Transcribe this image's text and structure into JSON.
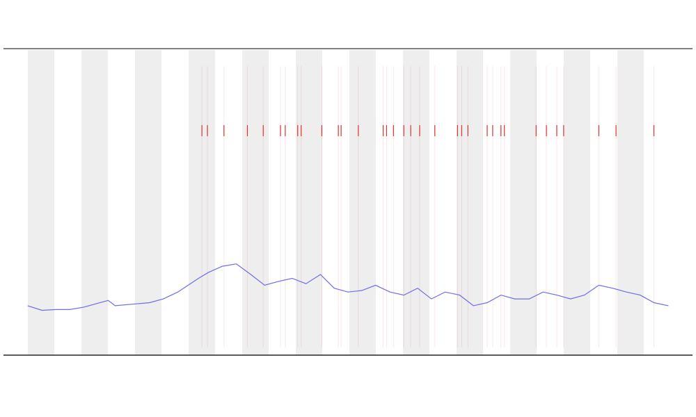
{
  "chart_data": {
    "type": "line",
    "xlim": [
      0,
      100
    ],
    "ylim": [
      0,
      400
    ],
    "x": [
      3.5,
      5.6,
      7.6,
      9.6,
      11.6,
      13.6,
      15.2,
      16.2,
      18.7,
      21.2,
      23.2,
      25.3,
      26.8,
      28.3,
      29.8,
      31.8,
      33.8,
      35.9,
      37.9,
      39.9,
      41.9,
      43.9,
      46.0,
      48.0,
      50.0,
      52.0,
      54.0,
      56.1,
      58.1,
      60.1,
      62.1,
      64.1,
      66.2,
      68.2,
      70.2,
      72.2,
      74.2,
      76.3,
      78.3,
      80.3,
      82.3,
      84.3,
      86.4,
      88.4,
      90.4,
      92.4,
      94.4,
      96.5
    ],
    "series": [
      {
        "color": "#6b6bef",
        "values": [
          64,
          58,
          59,
          59,
          62,
          67,
          71,
          64,
          66,
          68,
          73,
          82,
          91,
          100,
          108,
          116,
          119,
          105,
          91,
          96,
          100,
          93,
          105,
          87,
          82,
          84,
          91,
          82,
          78,
          87,
          73,
          82,
          78,
          64,
          68,
          78,
          73,
          73,
          82,
          78,
          73,
          78,
          91,
          87,
          82,
          78,
          68,
          64
        ]
      }
    ],
    "events": {
      "color": "#e03030",
      "x": [
        28.8,
        29.6,
        32.0,
        35.4,
        37.7,
        40.2,
        40.9,
        42.7,
        43.2,
        46.2,
        48.6,
        49.0,
        51.5,
        55.1,
        55.6,
        56.6,
        58.1,
        59.1,
        60.4,
        62.6,
        65.9,
        66.5,
        67.4,
        70.2,
        71.0,
        72.2,
        72.7,
        77.3,
        78.8,
        80.3,
        81.3,
        86.4,
        88.9,
        94.4
      ]
    }
  }
}
